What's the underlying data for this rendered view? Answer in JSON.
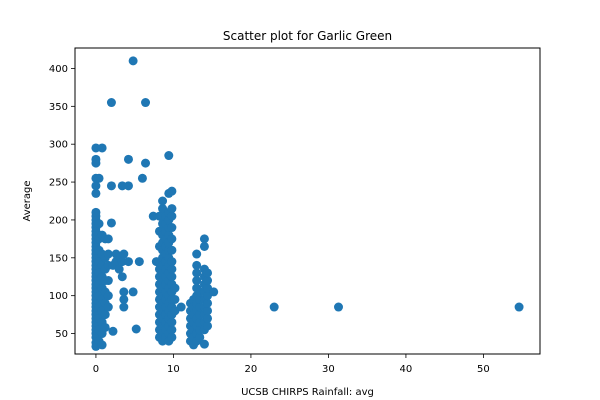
{
  "chart_data": {
    "type": "scatter",
    "title": "Scatter plot for Garlic Green",
    "xlabel": "UCSB CHIRPS Rainfall: avg",
    "ylabel": "Average",
    "xlim": [
      -2.7,
      57.3
    ],
    "ylim": [
      23,
      427
    ],
    "xticks": [
      0,
      10,
      20,
      30,
      40,
      50
    ],
    "yticks": [
      50,
      100,
      150,
      200,
      250,
      300,
      350,
      400
    ],
    "grid": false,
    "marker_color": "#1f77b4",
    "points": [
      [
        0,
        33
      ],
      [
        0,
        38
      ],
      [
        0,
        45
      ],
      [
        0,
        50
      ],
      [
        0,
        55
      ],
      [
        0,
        60
      ],
      [
        0,
        65
      ],
      [
        0,
        70
      ],
      [
        0,
        75
      ],
      [
        0,
        80
      ],
      [
        0,
        85
      ],
      [
        0,
        90
      ],
      [
        0,
        95
      ],
      [
        0,
        100
      ],
      [
        0,
        105
      ],
      [
        0,
        110
      ],
      [
        0,
        115
      ],
      [
        0,
        120
      ],
      [
        0,
        125
      ],
      [
        0,
        130
      ],
      [
        0,
        135
      ],
      [
        0,
        140
      ],
      [
        0,
        145
      ],
      [
        0,
        150
      ],
      [
        0,
        155
      ],
      [
        0,
        160
      ],
      [
        0,
        165
      ],
      [
        0,
        170
      ],
      [
        0,
        175
      ],
      [
        0,
        180
      ],
      [
        0,
        185
      ],
      [
        0,
        190
      ],
      [
        0,
        195
      ],
      [
        0,
        200
      ],
      [
        0,
        205
      ],
      [
        0,
        210
      ],
      [
        0,
        235
      ],
      [
        0,
        245
      ],
      [
        0,
        255
      ],
      [
        0,
        275
      ],
      [
        0,
        280
      ],
      [
        0,
        295
      ],
      [
        0.4,
        40
      ],
      [
        0.4,
        55
      ],
      [
        0.4,
        70
      ],
      [
        0.4,
        85
      ],
      [
        0.4,
        100
      ],
      [
        0.4,
        115
      ],
      [
        0.4,
        130
      ],
      [
        0.4,
        145
      ],
      [
        0.4,
        160
      ],
      [
        0.4,
        175
      ],
      [
        0.4,
        195
      ],
      [
        0.4,
        255
      ],
      [
        0.8,
        35
      ],
      [
        0.8,
        50
      ],
      [
        0.8,
        65
      ],
      [
        0.8,
        80
      ],
      [
        0.8,
        95
      ],
      [
        0.8,
        110
      ],
      [
        0.8,
        125
      ],
      [
        0.8,
        140
      ],
      [
        0.8,
        155
      ],
      [
        0.8,
        180
      ],
      [
        0.8,
        295
      ],
      [
        1.2,
        58
      ],
      [
        1.2,
        75
      ],
      [
        1.2,
        90
      ],
      [
        1.2,
        105
      ],
      [
        1.2,
        120
      ],
      [
        1.2,
        135
      ],
      [
        1.2,
        150
      ],
      [
        1.2,
        175
      ],
      [
        1.6,
        85
      ],
      [
        1.6,
        100
      ],
      [
        1.6,
        120
      ],
      [
        1.6,
        140
      ],
      [
        1.6,
        155
      ],
      [
        1.6,
        175
      ],
      [
        2.0,
        196
      ],
      [
        2.0,
        245
      ],
      [
        2.0,
        355
      ],
      [
        2.2,
        53
      ],
      [
        2.2,
        140
      ],
      [
        2.6,
        145
      ],
      [
        2.6,
        155
      ],
      [
        3.0,
        135
      ],
      [
        3.0,
        150
      ],
      [
        3.4,
        125
      ],
      [
        3.4,
        145
      ],
      [
        3.4,
        245
      ],
      [
        3.6,
        85
      ],
      [
        3.6,
        95
      ],
      [
        3.6,
        105
      ],
      [
        3.6,
        155
      ],
      [
        4.2,
        145
      ],
      [
        4.2,
        245
      ],
      [
        4.2,
        280
      ],
      [
        4.8,
        105
      ],
      [
        4.8,
        410
      ],
      [
        5.2,
        56
      ],
      [
        5.6,
        145
      ],
      [
        6.0,
        255
      ],
      [
        6.4,
        275
      ],
      [
        6.4,
        355
      ],
      [
        7.4,
        205
      ],
      [
        7.8,
        145
      ],
      [
        8.2,
        45
      ],
      [
        8.2,
        55
      ],
      [
        8.2,
        65
      ],
      [
        8.2,
        75
      ],
      [
        8.2,
        85
      ],
      [
        8.2,
        95
      ],
      [
        8.2,
        105
      ],
      [
        8.2,
        115
      ],
      [
        8.2,
        125
      ],
      [
        8.2,
        135
      ],
      [
        8.2,
        145
      ],
      [
        8.2,
        165
      ],
      [
        8.2,
        185
      ],
      [
        8.2,
        205
      ],
      [
        8.6,
        40
      ],
      [
        8.6,
        50
      ],
      [
        8.6,
        60
      ],
      [
        8.6,
        70
      ],
      [
        8.6,
        80
      ],
      [
        8.6,
        90
      ],
      [
        8.6,
        100
      ],
      [
        8.6,
        110
      ],
      [
        8.6,
        120
      ],
      [
        8.6,
        130
      ],
      [
        8.6,
        140
      ],
      [
        8.6,
        150
      ],
      [
        8.6,
        160
      ],
      [
        8.6,
        170
      ],
      [
        8.6,
        180
      ],
      [
        8.6,
        195
      ],
      [
        8.6,
        215
      ],
      [
        8.6,
        225
      ],
      [
        9.0,
        45
      ],
      [
        9.0,
        55
      ],
      [
        9.0,
        65
      ],
      [
        9.0,
        75
      ],
      [
        9.0,
        85
      ],
      [
        9.0,
        95
      ],
      [
        9.0,
        105
      ],
      [
        9.0,
        115
      ],
      [
        9.0,
        125
      ],
      [
        9.0,
        135
      ],
      [
        9.0,
        145
      ],
      [
        9.0,
        155
      ],
      [
        9.0,
        165
      ],
      [
        9.0,
        175
      ],
      [
        9.0,
        185
      ],
      [
        9.0,
        195
      ],
      [
        9.0,
        205
      ],
      [
        9.4,
        40
      ],
      [
        9.4,
        50
      ],
      [
        9.4,
        60
      ],
      [
        9.4,
        70
      ],
      [
        9.4,
        80
      ],
      [
        9.4,
        90
      ],
      [
        9.4,
        100
      ],
      [
        9.4,
        110
      ],
      [
        9.4,
        120
      ],
      [
        9.4,
        130
      ],
      [
        9.4,
        140
      ],
      [
        9.4,
        150
      ],
      [
        9.4,
        160
      ],
      [
        9.4,
        170
      ],
      [
        9.4,
        180
      ],
      [
        9.4,
        190
      ],
      [
        9.4,
        200
      ],
      [
        9.4,
        210
      ],
      [
        9.4,
        235
      ],
      [
        9.4,
        285
      ],
      [
        9.8,
        45
      ],
      [
        9.8,
        55
      ],
      [
        9.8,
        65
      ],
      [
        9.8,
        75
      ],
      [
        9.8,
        85
      ],
      [
        9.8,
        95
      ],
      [
        9.8,
        105
      ],
      [
        9.8,
        115
      ],
      [
        9.8,
        125
      ],
      [
        9.8,
        135
      ],
      [
        9.8,
        145
      ],
      [
        9.8,
        160
      ],
      [
        9.8,
        175
      ],
      [
        9.8,
        190
      ],
      [
        9.8,
        205
      ],
      [
        9.8,
        215
      ],
      [
        9.8,
        238
      ],
      [
        10.2,
        80
      ],
      [
        10.2,
        95
      ],
      [
        10.2,
        110
      ],
      [
        11.0,
        85
      ],
      [
        12.2,
        40
      ],
      [
        12.2,
        50
      ],
      [
        12.2,
        60
      ],
      [
        12.2,
        70
      ],
      [
        12.2,
        80
      ],
      [
        12.2,
        90
      ],
      [
        12.6,
        35
      ],
      [
        12.6,
        45
      ],
      [
        12.6,
        55
      ],
      [
        12.6,
        65
      ],
      [
        12.6,
        75
      ],
      [
        12.6,
        85
      ],
      [
        12.6,
        95
      ],
      [
        13.0,
        40
      ],
      [
        13.0,
        50
      ],
      [
        13.0,
        60
      ],
      [
        13.0,
        70
      ],
      [
        13.0,
        80
      ],
      [
        13.0,
        90
      ],
      [
        13.0,
        100
      ],
      [
        13.0,
        110
      ],
      [
        13.0,
        120
      ],
      [
        13.0,
        130
      ],
      [
        13.0,
        140
      ],
      [
        13.0,
        155
      ],
      [
        13.4,
        45
      ],
      [
        13.4,
        55
      ],
      [
        13.4,
        65
      ],
      [
        13.4,
        75
      ],
      [
        13.4,
        85
      ],
      [
        13.4,
        95
      ],
      [
        13.4,
        105
      ],
      [
        14.0,
        36
      ],
      [
        14.0,
        55
      ],
      [
        14.0,
        65
      ],
      [
        14.0,
        75
      ],
      [
        14.0,
        85
      ],
      [
        14.0,
        95
      ],
      [
        14.0,
        105
      ],
      [
        14.0,
        115
      ],
      [
        14.0,
        125
      ],
      [
        14.0,
        135
      ],
      [
        14.0,
        165
      ],
      [
        14.0,
        175
      ],
      [
        14.4,
        60
      ],
      [
        14.4,
        70
      ],
      [
        14.4,
        80
      ],
      [
        14.4,
        90
      ],
      [
        14.4,
        100
      ],
      [
        14.4,
        110
      ],
      [
        14.4,
        120
      ],
      [
        14.4,
        130
      ],
      [
        15.2,
        105
      ],
      [
        23.0,
        85
      ],
      [
        31.3,
        85
      ],
      [
        54.6,
        85
      ]
    ]
  }
}
